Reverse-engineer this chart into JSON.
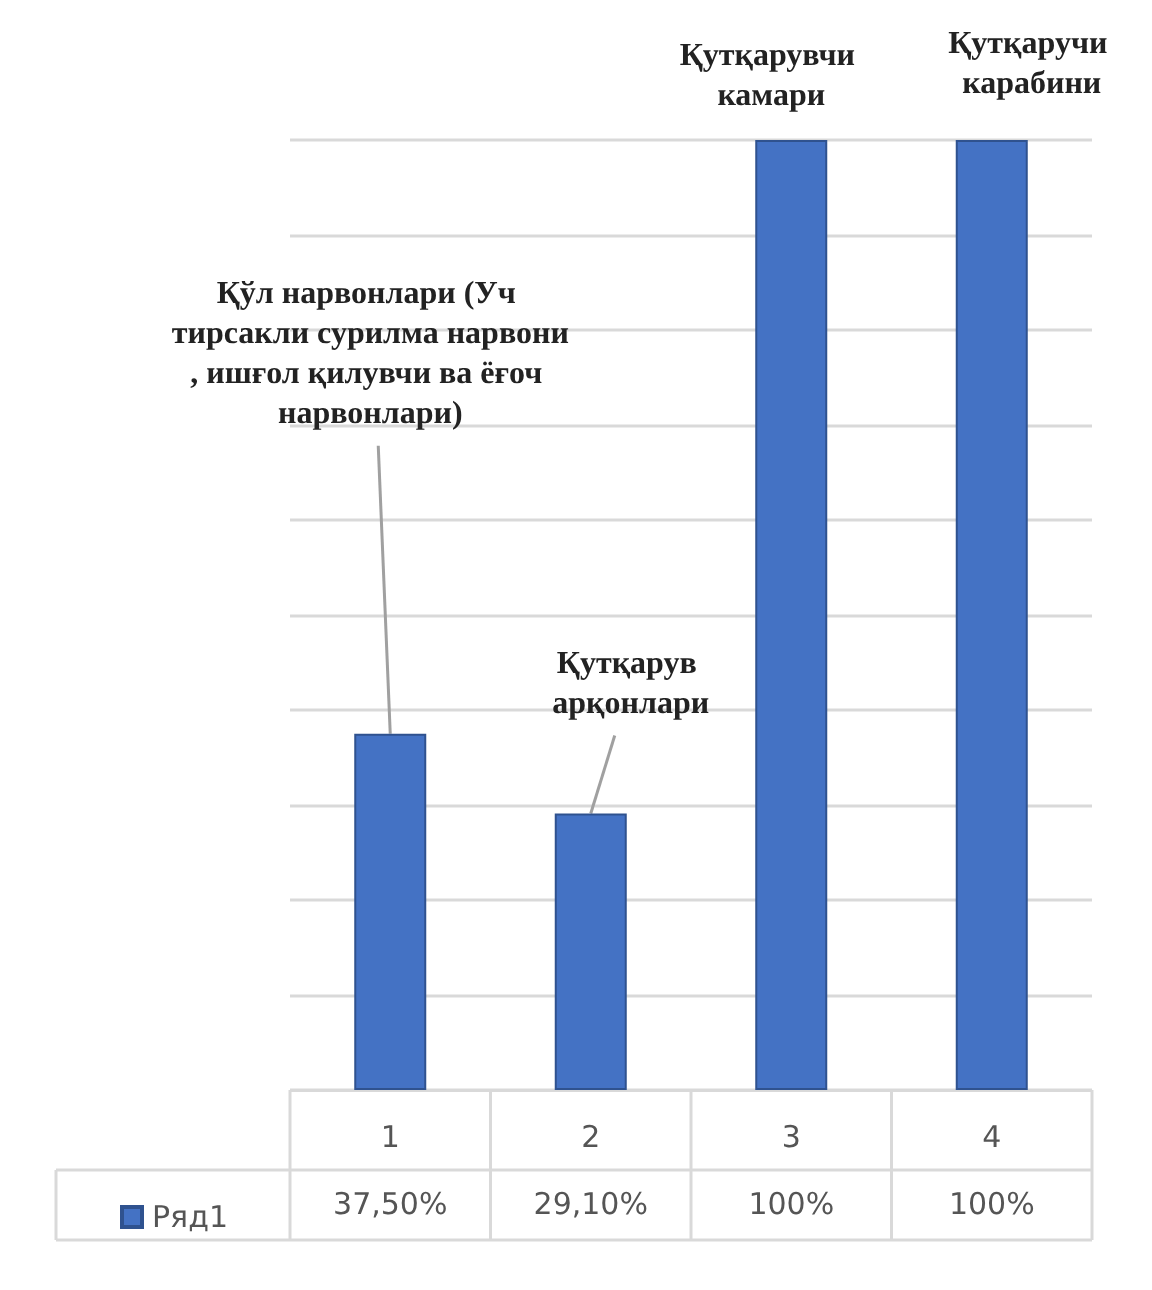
{
  "chart_data": {
    "type": "bar",
    "categories": [
      "1",
      "2",
      "3",
      "4"
    ],
    "series": [
      {
        "name": "Ряд1",
        "color": "#4472c4",
        "values": [
          37.5,
          29.1,
          100,
          100
        ],
        "value_labels": [
          "37,50%",
          "29,10%",
          "100%",
          "100%"
        ]
      }
    ],
    "ylim": [
      0,
      100
    ],
    "yticks": [
      {
        "value": 0,
        "label": null
      },
      {
        "value": 10,
        "label": null
      },
      {
        "value": 20,
        "label": null
      },
      {
        "value": 30,
        "label": null
      },
      {
        "value": 40,
        "label": null
      },
      {
        "value": 50,
        "label": null
      },
      {
        "value": 60,
        "label": null
      },
      {
        "value": 70,
        "label": null
      },
      {
        "value": 80,
        "label": null
      },
      {
        "value": 90,
        "label": null
      },
      {
        "value": 100,
        "label": null
      }
    ],
    "grid": "y",
    "legend": "bottom left",
    "annotations": [
      {
        "text": "Қўл нарвонлари (Уч тирсакли сурилма нарвони, ишғол қилувчи ва ёғоч нарвонлари)",
        "x": "1",
        "y": 37.5
      },
      {
        "text": "Қутқарув арқонлари",
        "x": "2",
        "y": 29.1
      },
      {
        "text": "Қутқарувчи камари",
        "x": "3",
        "y": 100
      },
      {
        "text": "Қутқаручи карабини",
        "x": "4",
        "y": 100
      }
    ]
  }
}
